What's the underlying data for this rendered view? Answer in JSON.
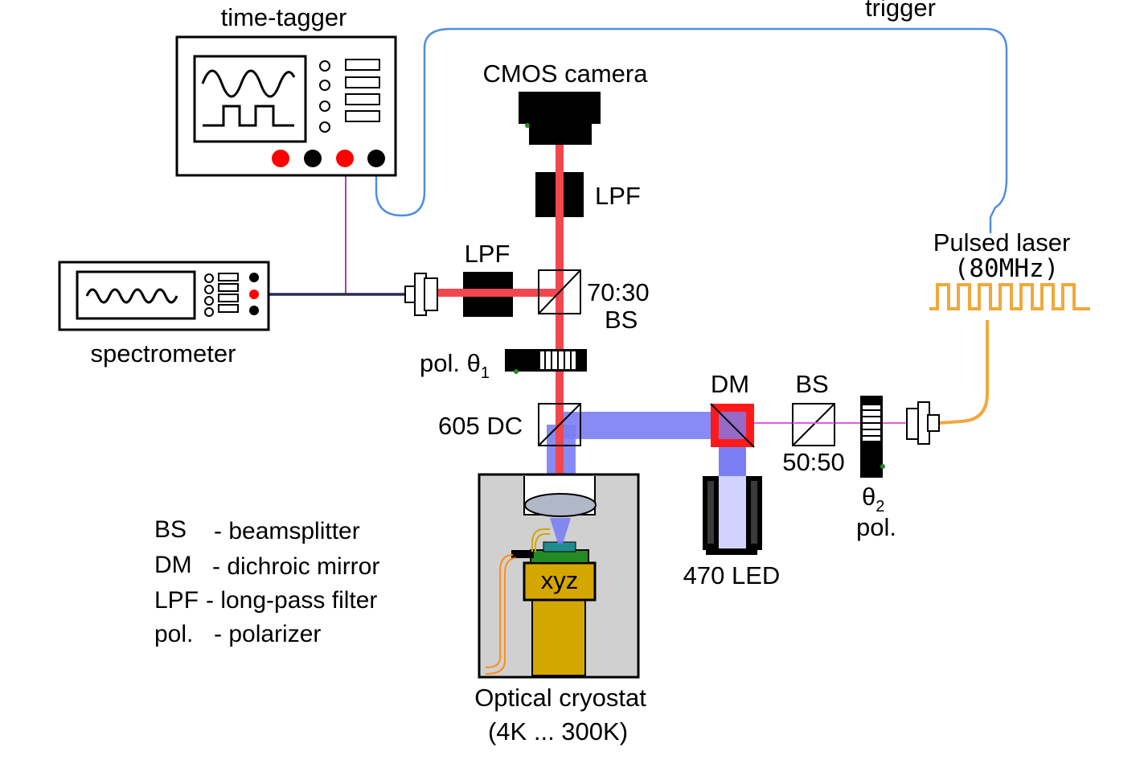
{
  "labels": {
    "time_tagger": "time-tagger",
    "trigger": "trigger",
    "cmos_camera": "CMOS camera",
    "lpf_top": "LPF",
    "lpf_left": "LPF",
    "bs_ratio_line1": "70:30",
    "bs_ratio_line2": "BS",
    "pulsed_laser": "Pulsed laser",
    "pulsed_laser_rate": "(80MHz)",
    "spectrometer": "spectrometer",
    "pol_theta1_prefix": "pol. θ",
    "pol_theta1_sub": "1",
    "dc_605": "605 DC",
    "dm": "DM",
    "bs_right": "BS",
    "bs_right_ratio": "50:50",
    "theta2": "θ",
    "theta2_sub": "2",
    "pol_right": "pol.",
    "led_470": "470 LED",
    "xyz": "xyz",
    "cryostat_line1": "Optical cryostat",
    "cryostat_line2": "(4K ... 300K)"
  },
  "legend": [
    {
      "abbr": "BS",
      "desc": "- beamsplitter"
    },
    {
      "abbr": "DM",
      "desc": "- dichroic mirror"
    },
    {
      "abbr": "LPF",
      "desc": "- long-pass filter"
    },
    {
      "abbr": "pol.",
      "desc": "- polarizer"
    }
  ],
  "colors": {
    "red_beam": "#f2474f",
    "blue_beam": "#7b7ef2",
    "trigger_cable": "#4f8fe0",
    "laser_fiber": "#f0a93c",
    "signal_cable": "#9b4aa0",
    "fiber_dark": "#2b2b55",
    "pink_beam": "#e85adf",
    "dm_red": "#ff1a1a",
    "stage_gold": "#d4a600",
    "cryostat_gray": "#d0d0d0",
    "led_light": "#d2d2ff",
    "red_knob": "#ff0000",
    "black_knob": "#000000",
    "sample_teal": "#1e8c8c",
    "sample_green": "#228b22",
    "wire_orange": "#ff8c1a"
  }
}
